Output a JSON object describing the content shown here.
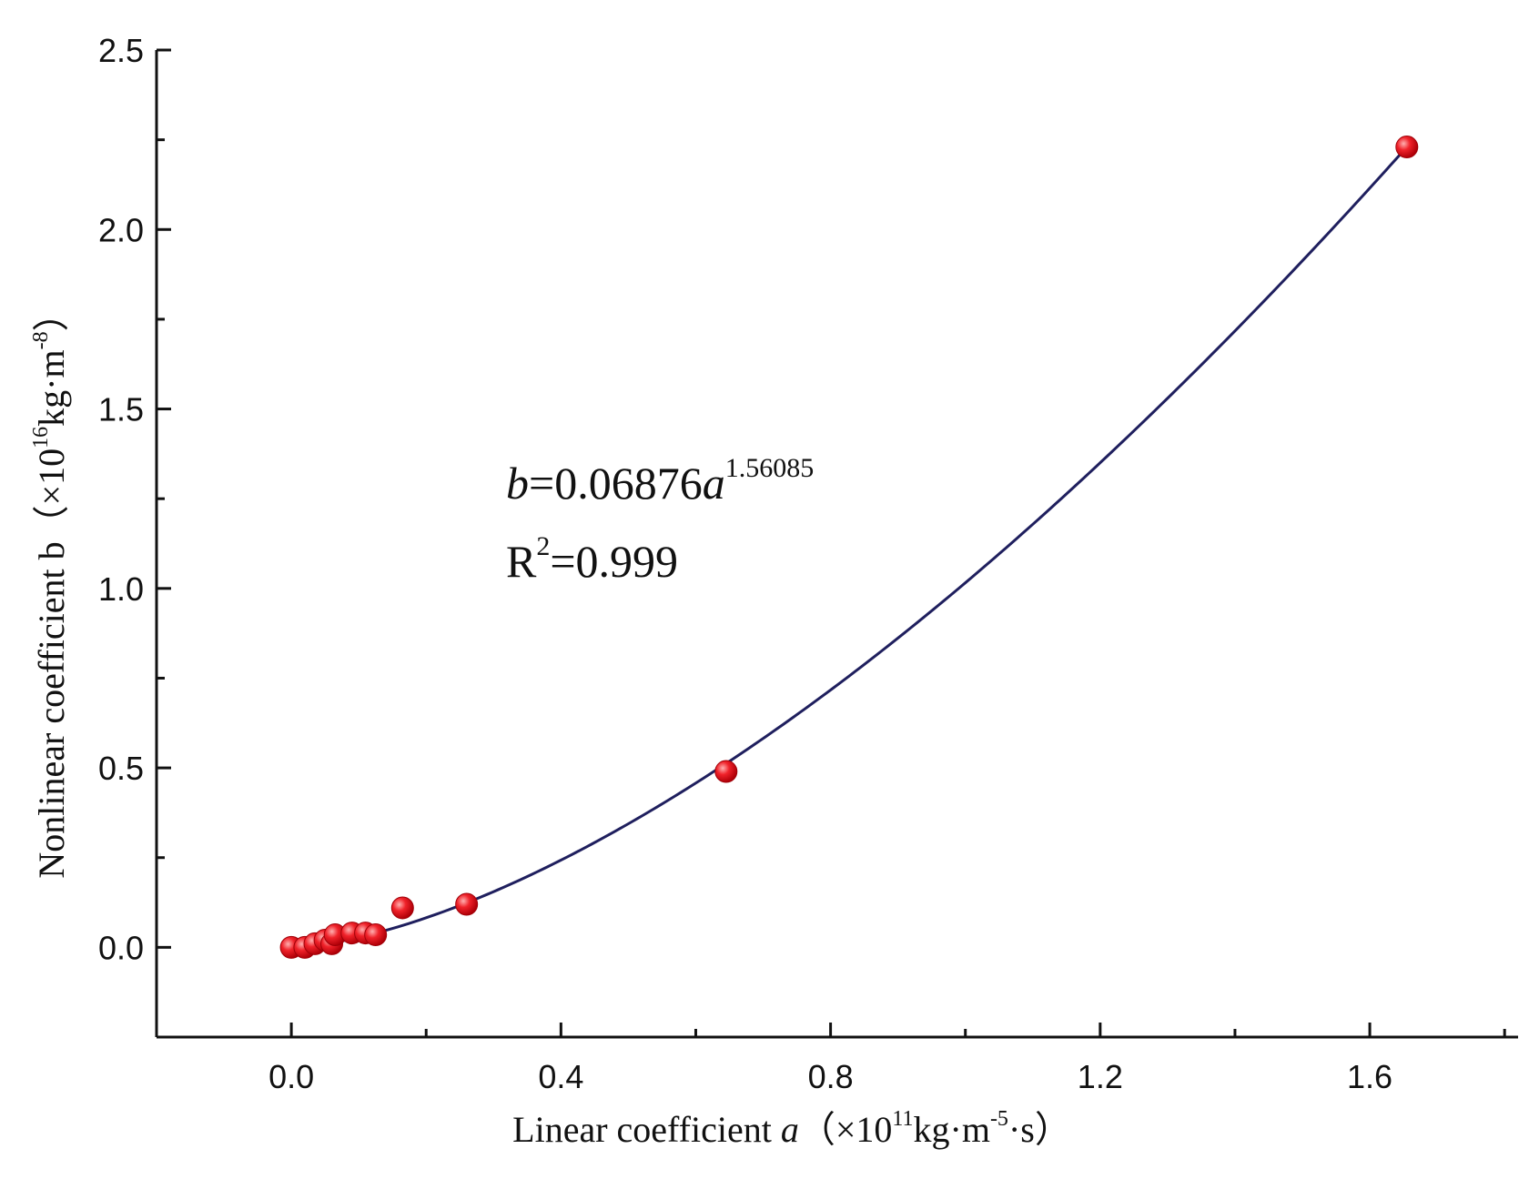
{
  "chart_data": {
    "type": "scatter",
    "xlabel": {
      "prefix": "Linear coefficient ",
      "var": "a",
      "unit_open": "（×10",
      "unit_exp": "11",
      "unit_mid": "kg·m",
      "unit_exp2": "-5",
      "unit_close": "·s）"
    },
    "ylabel": {
      "prefix": "Nonlinear coefficient b（×10",
      "unit_exp": "16",
      "unit_mid": "kg·m",
      "unit_exp2": "-8",
      "unit_close": "）"
    },
    "xlim": [
      -0.2,
      1.82
    ],
    "ylim": [
      -0.25,
      2.5
    ],
    "x_ticks": [
      0.0,
      0.4,
      0.8,
      1.2,
      1.6
    ],
    "x_tick_labels": [
      "0.0",
      "0.4",
      "0.8",
      "1.2",
      "1.6"
    ],
    "x_minor_ticks": [
      0.2,
      0.6,
      1.0,
      1.4,
      1.8
    ],
    "y_ticks": [
      0.0,
      0.5,
      1.0,
      1.5,
      2.0,
      2.5
    ],
    "y_tick_labels": [
      "0.0",
      "0.5",
      "1.0",
      "1.5",
      "2.0",
      "2.5"
    ],
    "y_minor_ticks": [
      -0.25,
      0.25,
      0.75,
      1.25,
      1.75,
      2.25
    ],
    "grid": false,
    "points": [
      {
        "x": 0.0,
        "y": 0.0
      },
      {
        "x": 0.02,
        "y": 0.0
      },
      {
        "x": 0.035,
        "y": 0.01
      },
      {
        "x": 0.05,
        "y": 0.02
      },
      {
        "x": 0.06,
        "y": 0.01
      },
      {
        "x": 0.065,
        "y": 0.035
      },
      {
        "x": 0.09,
        "y": 0.04
      },
      {
        "x": 0.11,
        "y": 0.04
      },
      {
        "x": 0.125,
        "y": 0.035
      },
      {
        "x": 0.165,
        "y": 0.11
      },
      {
        "x": 0.26,
        "y": 0.12
      },
      {
        "x": 0.645,
        "y": 0.49
      },
      {
        "x": 1.655,
        "y": 2.23
      }
    ],
    "fit": {
      "coefficient": 0.06876,
      "exponent": 1.56085,
      "x_range": [
        0.0,
        1.655
      ],
      "equation_b": "b",
      "equation_mid": "=0.06876",
      "equation_a": "a",
      "equation_exp": "1.56085",
      "r2_label": "R",
      "r2_exp": "2",
      "r2_value": "=0.999"
    },
    "colors": {
      "point": "#e8141c",
      "point_highlight": "#ff9a9a",
      "fit_line": "#1f1f5e",
      "axis": "#111111"
    }
  }
}
